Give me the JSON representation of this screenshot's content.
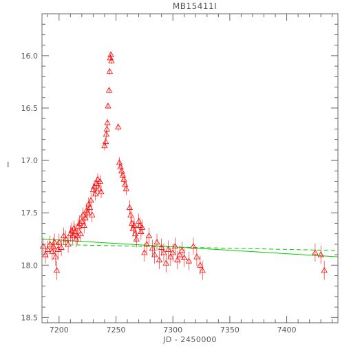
{
  "chart_data": {
    "type": "scatter",
    "title": "MB15411I",
    "xlabel": "JD - 2450000",
    "ylabel": "I",
    "xlim": [
      7185,
      7445
    ],
    "ylim": [
      18.55,
      15.6
    ],
    "y_inverted": true,
    "x_ticks": [
      7200,
      7250,
      7300,
      7350,
      7400
    ],
    "x_tick_labels": [
      "7200",
      "7250",
      "7300",
      "7350",
      "7400"
    ],
    "y_ticks": [
      16.0,
      16.5,
      17.0,
      17.5,
      18.0,
      18.5
    ],
    "y_tick_labels": [
      "16.0",
      "16.5",
      "17.0",
      "17.5",
      "18.0",
      "18.5"
    ],
    "grid": false,
    "colors": {
      "points": "#ff0000",
      "fit_lines": "#00cc00",
      "axes": "#666666"
    },
    "marker": "triangle-open",
    "series": [
      {
        "type": "scatter",
        "x": [
          7186,
          7188,
          7190,
          7192,
          7194,
          7195,
          7196,
          7197,
          7198,
          7199,
          7200,
          7202,
          7204,
          7206,
          7208,
          7210,
          7211,
          7212,
          7213,
          7214,
          7215,
          7216,
          7217,
          7218,
          7219,
          7220,
          7221,
          7222,
          7223,
          7224,
          7225,
          7226,
          7227,
          7228,
          7229,
          7230,
          7231,
          7232,
          7233,
          7234,
          7235,
          7236,
          7237,
          7240,
          7241,
          7241.5,
          7242,
          7242.5,
          7243,
          7244,
          7244.5,
          7245,
          7245.5,
          7246,
          7252,
          7253,
          7254,
          7255,
          7256,
          7257,
          7258,
          7259,
          7262,
          7263,
          7264,
          7265,
          7266,
          7267,
          7268,
          7270,
          7271,
          7272,
          7273,
          7275,
          7277,
          7279,
          7282,
          7284,
          7286,
          7288,
          7290,
          7292,
          7294,
          7296,
          7298,
          7300,
          7302,
          7304,
          7306,
          7308,
          7310,
          7314,
          7318,
          7321,
          7324,
          7326,
          7425,
          7430,
          7433
        ],
        "y": [
          17.82,
          17.9,
          17.85,
          17.8,
          17.87,
          17.82,
          17.78,
          17.92,
          18.05,
          17.85,
          17.78,
          17.83,
          17.72,
          17.75,
          17.8,
          17.7,
          17.67,
          17.72,
          17.65,
          17.68,
          17.75,
          17.72,
          17.63,
          17.6,
          17.7,
          17.58,
          17.52,
          17.62,
          17.55,
          17.48,
          17.5,
          17.42,
          17.45,
          17.38,
          17.52,
          17.28,
          17.25,
          17.32,
          17.22,
          17.18,
          17.27,
          17.2,
          17.3,
          16.86,
          16.82,
          16.75,
          16.7,
          16.64,
          16.48,
          16.33,
          16.15,
          16.02,
          15.99,
          16.05,
          16.68,
          17.02,
          17.06,
          17.1,
          17.14,
          17.18,
          17.23,
          17.27,
          17.45,
          17.52,
          17.6,
          17.65,
          17.62,
          17.7,
          17.75,
          17.58,
          17.62,
          17.68,
          17.64,
          17.88,
          17.8,
          17.72,
          17.84,
          17.9,
          17.78,
          17.95,
          17.83,
          17.88,
          17.98,
          17.85,
          17.92,
          17.88,
          17.82,
          17.95,
          17.9,
          17.86,
          17.93,
          17.96,
          17.82,
          17.92,
          18.0,
          18.05,
          17.88,
          17.9,
          18.05
        ]
      }
    ],
    "fit_lines": [
      {
        "style": "solid",
        "x": [
          7185,
          7445
        ],
        "y": [
          17.75,
          17.92
        ]
      },
      {
        "style": "dashed",
        "x": [
          7185,
          7445
        ],
        "y": [
          17.8,
          17.86
        ]
      }
    ]
  }
}
